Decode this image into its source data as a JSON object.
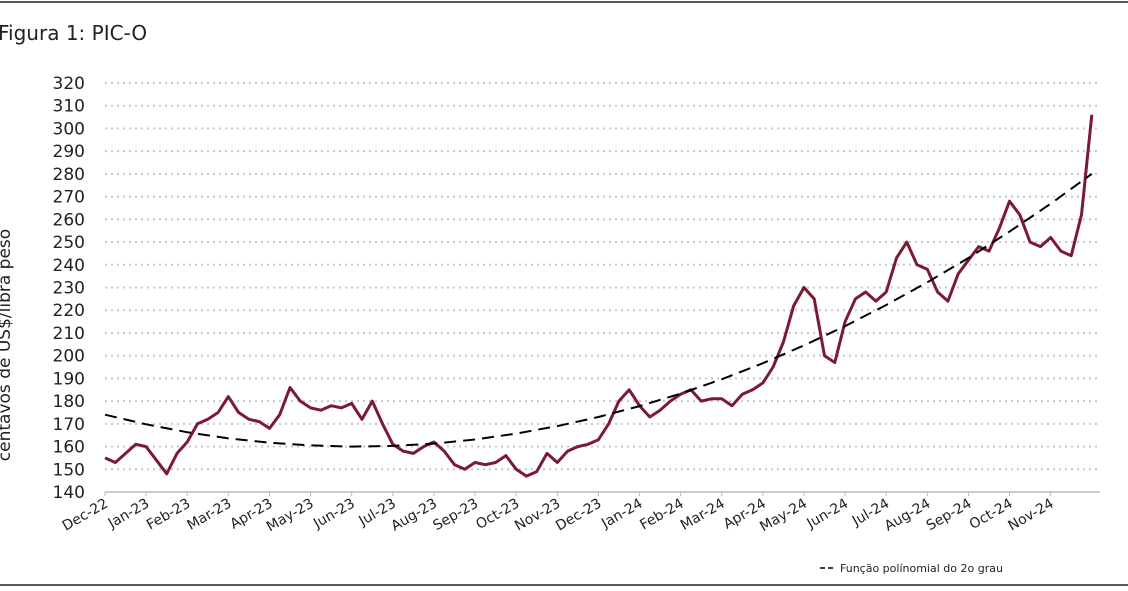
{
  "chart_data": {
    "type": "line",
    "title": "Figura 1: PIC-O",
    "y_label": "centavos de US$/libra peso",
    "xlim": [
      0,
      24.2
    ],
    "xticks": [
      {
        "value": 0,
        "label": "Dec-22"
      },
      {
        "value": 1,
        "label": "Jan-23"
      },
      {
        "value": 2,
        "label": "Feb-23"
      },
      {
        "value": 3,
        "label": "Mar-23"
      },
      {
        "value": 4,
        "label": "Apr-23"
      },
      {
        "value": 5,
        "label": "May-23"
      },
      {
        "value": 6,
        "label": "Jun-23"
      },
      {
        "value": 7,
        "label": "Jul-23"
      },
      {
        "value": 8,
        "label": "Aug-23"
      },
      {
        "value": 9,
        "label": "Sep-23"
      },
      {
        "value": 10,
        "label": "Oct-23"
      },
      {
        "value": 11,
        "label": "Nov-23"
      },
      {
        "value": 12,
        "label": "Dec-23"
      },
      {
        "value": 13,
        "label": "Jan-24"
      },
      {
        "value": 14,
        "label": "Feb-24"
      },
      {
        "value": 15,
        "label": "Mar-24"
      },
      {
        "value": 16,
        "label": "Apr-24"
      },
      {
        "value": 17,
        "label": "May-24"
      },
      {
        "value": 18,
        "label": "Jun-24"
      },
      {
        "value": 19,
        "label": "Jul-24"
      },
      {
        "value": 20,
        "label": "Aug-24"
      },
      {
        "value": 21,
        "label": "Sep-24"
      },
      {
        "value": 22,
        "label": "Oct-24"
      },
      {
        "value": 23,
        "label": "Nov-24"
      }
    ],
    "ylim": [
      140,
      320
    ],
    "yticks": [
      140,
      150,
      160,
      170,
      180,
      190,
      200,
      210,
      220,
      230,
      240,
      250,
      260,
      270,
      280,
      290,
      300,
      310,
      320
    ],
    "grid": true,
    "x": [
      0,
      0.25,
      0.5,
      0.75,
      1,
      1.25,
      1.5,
      1.75,
      2,
      2.25,
      2.5,
      2.75,
      3,
      3.25,
      3.5,
      3.75,
      4,
      4.25,
      4.5,
      4.75,
      5,
      5.25,
      5.5,
      5.75,
      6,
      6.25,
      6.5,
      6.75,
      7,
      7.25,
      7.5,
      7.75,
      8,
      8.25,
      8.5,
      8.75,
      9,
      9.25,
      9.5,
      9.75,
      10,
      10.25,
      10.5,
      10.75,
      11,
      11.25,
      11.5,
      11.75,
      12,
      12.25,
      12.5,
      12.75,
      13,
      13.25,
      13.5,
      13.75,
      14,
      14.25,
      14.5,
      14.75,
      15,
      15.25,
      15.5,
      15.75,
      16,
      16.25,
      16.5,
      16.75,
      17,
      17.25,
      17.5,
      17.75,
      18,
      18.25,
      18.5,
      18.75,
      19,
      19.25,
      19.5,
      19.75,
      20,
      20.25,
      20.5,
      20.75,
      21,
      21.25,
      21.5,
      21.75,
      22,
      22.25,
      22.5,
      22.75,
      23,
      23.25,
      23.5,
      23.75,
      24
    ],
    "series": [
      {
        "color": "#7a1a33",
        "values": [
          155,
          153,
          157,
          161,
          160,
          154,
          148,
          157,
          162,
          170,
          172,
          175,
          182,
          175,
          172,
          171,
          168,
          174,
          186,
          180,
          177,
          176,
          178,
          177,
          179,
          172,
          180,
          170,
          161,
          158,
          157,
          160,
          162,
          158,
          152,
          150,
          153,
          152,
          153,
          156,
          150,
          147,
          149,
          157,
          153,
          158,
          160,
          161,
          163,
          170,
          180,
          185,
          178,
          173,
          176,
          180,
          183,
          185,
          180,
          181,
          181,
          178,
          183,
          185,
          188,
          195,
          206,
          222,
          230,
          225,
          200,
          197,
          215,
          225,
          228,
          224,
          228,
          243,
          250,
          240,
          238,
          228,
          224,
          236,
          242,
          248,
          246,
          256,
          268,
          262,
          250,
          248,
          252,
          246,
          244,
          262,
          306
        ]
      },
      {
        "name": "Função polínomial do 2o grau",
        "color": "#000000",
        "dashed": true,
        "x": [
          0,
          1,
          2,
          3,
          4,
          5,
          6,
          7,
          8,
          9,
          10,
          11,
          12,
          13,
          14,
          15,
          16,
          17,
          18,
          19,
          20,
          21,
          22,
          23,
          24
        ],
        "values": [
          174.0,
          169.8,
          166.3,
          163.6,
          161.7,
          160.5,
          160.0,
          160.3,
          161.3,
          163.1,
          165.7,
          169.0,
          173.0,
          177.8,
          183.3,
          189.6,
          196.7,
          204.5,
          213.0,
          222.3,
          232.3,
          243.0,
          254.6,
          266.9,
          280.0
        ]
      }
    ]
  }
}
